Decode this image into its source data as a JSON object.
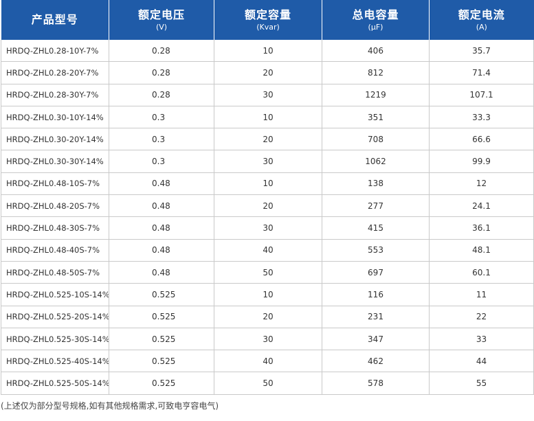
{
  "table": {
    "headers": [
      {
        "main": "产品型号",
        "unit": ""
      },
      {
        "main": "额定电压",
        "unit": "(V)"
      },
      {
        "main": "额定容量",
        "unit": "(Kvar)"
      },
      {
        "main": "总电容量",
        "unit": "(μF)"
      },
      {
        "main": "额定电流",
        "unit": "(A)"
      }
    ],
    "rows": [
      [
        "HRDQ-ZHL0.28-10Y-7%",
        "0.28",
        "10",
        "406",
        "35.7"
      ],
      [
        "HRDQ-ZHL0.28-20Y-7%",
        "0.28",
        "20",
        "812",
        "71.4"
      ],
      [
        "HRDQ-ZHL0.28-30Y-7%",
        "0.28",
        "30",
        "1219",
        "107.1"
      ],
      [
        "HRDQ-ZHL0.30-10Y-14%",
        "0.3",
        "10",
        "351",
        "33.3"
      ],
      [
        "HRDQ-ZHL0.30-20Y-14%",
        "0.3",
        "20",
        "708",
        "66.6"
      ],
      [
        "HRDQ-ZHL0.30-30Y-14%",
        "0.3",
        "30",
        "1062",
        "99.9"
      ],
      [
        "HRDQ-ZHL0.48-10S-7%",
        "0.48",
        "10",
        "138",
        "12"
      ],
      [
        "HRDQ-ZHL0.48-20S-7%",
        "0.48",
        "20",
        "277",
        "24.1"
      ],
      [
        "HRDQ-ZHL0.48-30S-7%",
        "0.48",
        "30",
        "415",
        "36.1"
      ],
      [
        "HRDQ-ZHL0.48-40S-7%",
        "0.48",
        "40",
        "553",
        "48.1"
      ],
      [
        "HRDQ-ZHL0.48-50S-7%",
        "0.48",
        "50",
        "697",
        "60.1"
      ],
      [
        "HRDQ-ZHL0.525-10S-14%",
        "0.525",
        "10",
        "116",
        "11"
      ],
      [
        "HRDQ-ZHL0.525-20S-14%",
        "0.525",
        "20",
        "231",
        "22"
      ],
      [
        "HRDQ-ZHL0.525-30S-14%",
        "0.525",
        "30",
        "347",
        "33"
      ],
      [
        "HRDQ-ZHL0.525-40S-14%",
        "0.525",
        "40",
        "462",
        "44"
      ],
      [
        "HRDQ-ZHL0.525-50S-14%",
        "0.525",
        "50",
        "578",
        "55"
      ]
    ]
  },
  "footnote": "(上述仅为部分型号规格,如有其他规格需求,可致电亨容电气)",
  "colors": {
    "header_bg": "#1f5ba8",
    "header_text": "#ffffff",
    "grid_line": "#c9c9c9",
    "body_text": "#333333"
  }
}
